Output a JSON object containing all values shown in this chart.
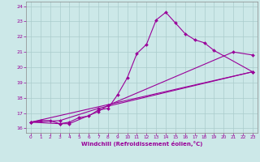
{
  "xlabel": "Windchill (Refroidissement éolien,°C)",
  "bg_color": "#cce8e8",
  "line_color": "#990099",
  "grid_color": "#aacccc",
  "spine_color": "#888888",
  "xlim": [
    -0.5,
    23.5
  ],
  "ylim": [
    15.7,
    24.3
  ],
  "xticks": [
    0,
    1,
    2,
    3,
    4,
    5,
    6,
    7,
    8,
    9,
    10,
    11,
    12,
    13,
    14,
    15,
    16,
    17,
    18,
    19,
    20,
    21,
    22,
    23
  ],
  "yticks": [
    16,
    17,
    18,
    19,
    20,
    21,
    22,
    23,
    24
  ],
  "lines": [
    {
      "x": [
        0,
        1,
        2,
        3,
        4,
        5,
        6,
        7,
        8,
        9,
        10,
        11,
        12,
        13,
        14,
        15,
        16,
        17,
        18,
        19,
        23
      ],
      "y": [
        16.4,
        16.5,
        16.5,
        16.3,
        16.4,
        16.7,
        16.8,
        17.2,
        17.3,
        18.2,
        19.3,
        20.9,
        21.5,
        23.1,
        23.6,
        22.9,
        22.2,
        21.8,
        21.6,
        21.1,
        19.7
      ]
    },
    {
      "x": [
        0,
        3,
        4,
        7,
        8,
        21,
        23
      ],
      "y": [
        16.4,
        16.3,
        16.3,
        17.1,
        17.5,
        21.0,
        20.8
      ]
    },
    {
      "x": [
        0,
        3,
        7,
        23
      ],
      "y": [
        16.4,
        16.5,
        17.3,
        19.7
      ]
    },
    {
      "x": [
        0,
        23
      ],
      "y": [
        16.4,
        19.7
      ]
    }
  ]
}
